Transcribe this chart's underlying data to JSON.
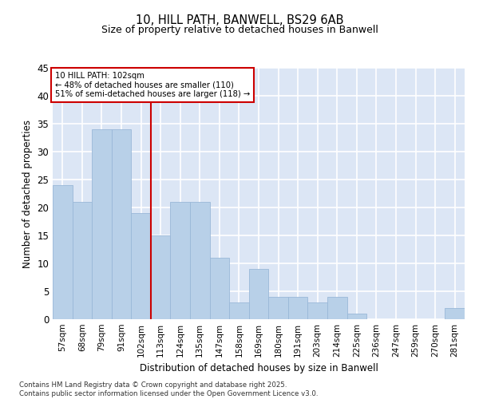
{
  "title1": "10, HILL PATH, BANWELL, BS29 6AB",
  "title2": "Size of property relative to detached houses in Banwell",
  "xlabel": "Distribution of detached houses by size in Banwell",
  "ylabel": "Number of detached properties",
  "categories": [
    "57sqm",
    "68sqm",
    "79sqm",
    "91sqm",
    "102sqm",
    "113sqm",
    "124sqm",
    "135sqm",
    "147sqm",
    "158sqm",
    "169sqm",
    "180sqm",
    "191sqm",
    "203sqm",
    "214sqm",
    "225sqm",
    "236sqm",
    "247sqm",
    "259sqm",
    "270sqm",
    "281sqm"
  ],
  "values": [
    24,
    21,
    34,
    34,
    19,
    15,
    21,
    21,
    11,
    3,
    9,
    4,
    4,
    3,
    4,
    1,
    0,
    0,
    0,
    0,
    2
  ],
  "bar_color": "#b8d0e8",
  "bar_edge_color": "#9ab8d8",
  "vline_x_index": 4,
  "vline_color": "#cc0000",
  "annotation_text": "10 HILL PATH: 102sqm\n← 48% of detached houses are smaller (110)\n51% of semi-detached houses are larger (118) →",
  "annotation_box_color": "#ffffff",
  "annotation_box_edge": "#cc0000",
  "ylim": [
    0,
    45
  ],
  "yticks": [
    0,
    5,
    10,
    15,
    20,
    25,
    30,
    35,
    40,
    45
  ],
  "background_color": "#dce6f5",
  "grid_color": "#ffffff",
  "footer1": "Contains HM Land Registry data © Crown copyright and database right 2025.",
  "footer2": "Contains public sector information licensed under the Open Government Licence v3.0."
}
